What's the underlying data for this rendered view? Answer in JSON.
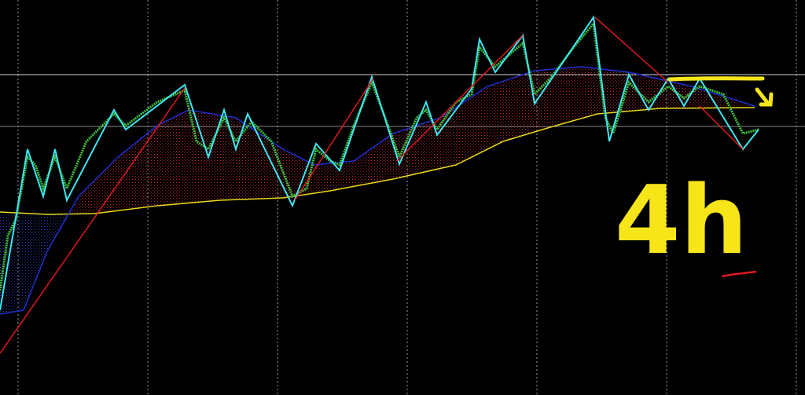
{
  "annotation": {
    "label": "4h"
  }
}
